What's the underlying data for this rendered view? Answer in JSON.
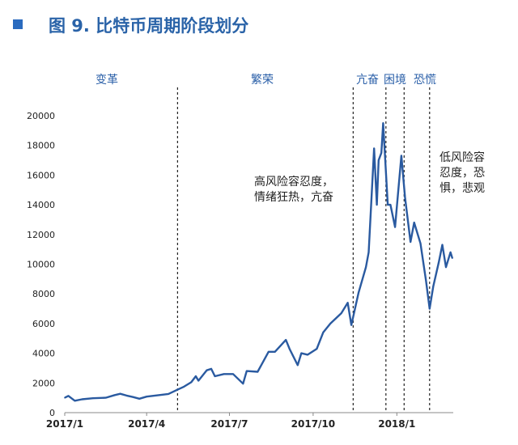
{
  "title": "图 9. 比特币周期阶段划分",
  "phases": [
    "变革",
    "繁荣",
    "亢奋",
    "困境",
    "恐慌"
  ],
  "annotations": [
    "高风险容忍度，",
    "情绪狂热，亢奋",
    "低风险容",
    "忍度，恐",
    "惧，悲观"
  ],
  "chart_data": {
    "type": "line",
    "title": "图 9. 比特币周期阶段划分",
    "xlabel": "",
    "ylabel": "",
    "ylim": [
      0,
      20000
    ],
    "y_ticks": [
      0,
      2000,
      4000,
      6000,
      8000,
      10000,
      12000,
      14000,
      16000,
      18000,
      20000
    ],
    "x_ticks": [
      "2017/1",
      "2017/4",
      "2017/7",
      "2017/10",
      "2018/1"
    ],
    "x_tick_dates": [
      "2017-01-01",
      "2017-04-01",
      "2017-07-01",
      "2017-10-01",
      "2018-01-01"
    ],
    "xlim": [
      "2017-01-01",
      "2018-03-04"
    ],
    "phase_boundaries": [
      "2017-05-05",
      "2017-11-14",
      "2017-12-20",
      "2018-01-09",
      "2018-02-06"
    ],
    "grid": false,
    "line_color": "#2a5aa0",
    "series": [
      {
        "points": [
          [
            "2017-01-01",
            1000
          ],
          [
            "2017-01-05",
            1130
          ],
          [
            "2017-01-12",
            800
          ],
          [
            "2017-01-20",
            900
          ],
          [
            "2017-02-01",
            970
          ],
          [
            "2017-02-15",
            1000
          ],
          [
            "2017-02-25",
            1180
          ],
          [
            "2017-03-03",
            1270
          ],
          [
            "2017-03-10",
            1150
          ],
          [
            "2017-03-17",
            1050
          ],
          [
            "2017-03-24",
            940
          ],
          [
            "2017-04-01",
            1080
          ],
          [
            "2017-04-15",
            1180
          ],
          [
            "2017-04-25",
            1260
          ],
          [
            "2017-05-05",
            1550
          ],
          [
            "2017-05-12",
            1750
          ],
          [
            "2017-05-20",
            2050
          ],
          [
            "2017-05-25",
            2450
          ],
          [
            "2017-05-28",
            2150
          ],
          [
            "2017-06-06",
            2850
          ],
          [
            "2017-06-11",
            2950
          ],
          [
            "2017-06-15",
            2450
          ],
          [
            "2017-06-25",
            2600
          ],
          [
            "2017-07-05",
            2600
          ],
          [
            "2017-07-16",
            1950
          ],
          [
            "2017-07-20",
            2800
          ],
          [
            "2017-08-01",
            2750
          ],
          [
            "2017-08-05",
            3200
          ],
          [
            "2017-08-13",
            4100
          ],
          [
            "2017-08-20",
            4100
          ],
          [
            "2017-09-01",
            4900
          ],
          [
            "2017-09-05",
            4300
          ],
          [
            "2017-09-14",
            3200
          ],
          [
            "2017-09-18",
            4000
          ],
          [
            "2017-09-25",
            3900
          ],
          [
            "2017-10-05",
            4300
          ],
          [
            "2017-10-12",
            5400
          ],
          [
            "2017-10-20",
            6000
          ],
          [
            "2017-11-01",
            6700
          ],
          [
            "2017-11-08",
            7400
          ],
          [
            "2017-11-12",
            5900
          ],
          [
            "2017-11-20",
            8100
          ],
          [
            "2017-11-28",
            9800
          ],
          [
            "2017-12-01",
            10800
          ],
          [
            "2017-12-07",
            17800
          ],
          [
            "2017-12-10",
            14000
          ],
          [
            "2017-12-12",
            17000
          ],
          [
            "2017-12-15",
            17500
          ],
          [
            "2017-12-17",
            19500
          ],
          [
            "2017-12-22",
            14000
          ],
          [
            "2017-12-25",
            14000
          ],
          [
            "2017-12-30",
            12500
          ],
          [
            "2018-01-06",
            17300
          ],
          [
            "2018-01-10",
            14500
          ],
          [
            "2018-01-16",
            11500
          ],
          [
            "2018-01-20",
            12800
          ],
          [
            "2018-01-27",
            11400
          ],
          [
            "2018-02-02",
            8900
          ],
          [
            "2018-02-06",
            7000
          ],
          [
            "2018-02-10",
            8500
          ],
          [
            "2018-02-16",
            10100
          ],
          [
            "2018-02-20",
            11300
          ],
          [
            "2018-02-24",
            9800
          ],
          [
            "2018-03-01",
            10800
          ],
          [
            "2018-03-03",
            10400
          ]
        ]
      }
    ]
  }
}
